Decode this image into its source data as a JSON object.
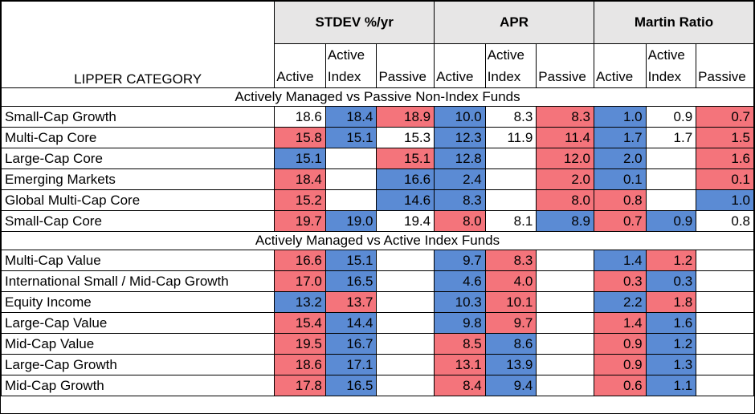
{
  "header": {
    "category_label": "LIPPER CATEGORY",
    "groups": [
      "STDEV %/yr",
      "APR",
      "Martin Ratio"
    ],
    "subheads": [
      "Active",
      "Active Index",
      "Passive"
    ]
  },
  "colors": {
    "high": "#f4747b",
    "low": "#5b8bd4",
    "header_bg": "#e7e6e6"
  },
  "sections": [
    {
      "title": "Actively Managed vs Passive Non-Index Funds",
      "rows": [
        {
          "name": "Small-Cap Growth",
          "cells": [
            {
              "v": "18.6",
              "c": "none"
            },
            {
              "v": "18.4",
              "c": "lo"
            },
            {
              "v": "18.9",
              "c": "hi"
            },
            {
              "v": "10.0",
              "c": "lo"
            },
            {
              "v": "8.3",
              "c": "none"
            },
            {
              "v": "8.3",
              "c": "hi"
            },
            {
              "v": "1.0",
              "c": "lo"
            },
            {
              "v": "0.9",
              "c": "none"
            },
            {
              "v": "0.7",
              "c": "hi"
            }
          ]
        },
        {
          "name": "Multi-Cap Core",
          "cells": [
            {
              "v": "15.8",
              "c": "hi"
            },
            {
              "v": "15.1",
              "c": "lo"
            },
            {
              "v": "15.3",
              "c": "none"
            },
            {
              "v": "12.3",
              "c": "lo"
            },
            {
              "v": "11.9",
              "c": "none"
            },
            {
              "v": "11.4",
              "c": "hi"
            },
            {
              "v": "1.7",
              "c": "lo"
            },
            {
              "v": "1.7",
              "c": "none"
            },
            {
              "v": "1.5",
              "c": "hi"
            }
          ]
        },
        {
          "name": "Large-Cap Core",
          "cells": [
            {
              "v": "15.1",
              "c": "lo"
            },
            {
              "v": "",
              "c": "none"
            },
            {
              "v": "15.1",
              "c": "hi"
            },
            {
              "v": "12.8",
              "c": "lo"
            },
            {
              "v": "",
              "c": "none"
            },
            {
              "v": "12.0",
              "c": "hi"
            },
            {
              "v": "2.0",
              "c": "lo"
            },
            {
              "v": "",
              "c": "none"
            },
            {
              "v": "1.6",
              "c": "hi"
            }
          ]
        },
        {
          "name": "Emerging Markets",
          "cells": [
            {
              "v": "18.4",
              "c": "hi"
            },
            {
              "v": "",
              "c": "none"
            },
            {
              "v": "16.6",
              "c": "lo"
            },
            {
              "v": "2.4",
              "c": "lo"
            },
            {
              "v": "",
              "c": "none"
            },
            {
              "v": "2.0",
              "c": "hi"
            },
            {
              "v": "0.1",
              "c": "lo"
            },
            {
              "v": "",
              "c": "none"
            },
            {
              "v": "0.1",
              "c": "hi"
            }
          ]
        },
        {
          "name": "Global Multi-Cap Core",
          "cells": [
            {
              "v": "15.2",
              "c": "hi"
            },
            {
              "v": "",
              "c": "none"
            },
            {
              "v": "14.6",
              "c": "lo"
            },
            {
              "v": "8.3",
              "c": "lo"
            },
            {
              "v": "",
              "c": "none"
            },
            {
              "v": "8.0",
              "c": "hi"
            },
            {
              "v": "0.8",
              "c": "hi"
            },
            {
              "v": "",
              "c": "none"
            },
            {
              "v": "1.0",
              "c": "lo"
            }
          ]
        },
        {
          "name": "Small-Cap Core",
          "cells": [
            {
              "v": "19.7",
              "c": "hi"
            },
            {
              "v": "19.0",
              "c": "lo"
            },
            {
              "v": "19.4",
              "c": "none"
            },
            {
              "v": "8.0",
              "c": "hi"
            },
            {
              "v": "8.1",
              "c": "none"
            },
            {
              "v": "8.9",
              "c": "lo"
            },
            {
              "v": "0.7",
              "c": "hi"
            },
            {
              "v": "0.9",
              "c": "lo"
            },
            {
              "v": "0.8",
              "c": "none"
            }
          ]
        }
      ]
    },
    {
      "title": "Actively Managed vs Active Index Funds",
      "rows": [
        {
          "name": "Multi-Cap Value",
          "cells": [
            {
              "v": "16.6",
              "c": "hi"
            },
            {
              "v": "15.1",
              "c": "lo"
            },
            {
              "v": "",
              "c": "none"
            },
            {
              "v": "9.7",
              "c": "lo"
            },
            {
              "v": "8.3",
              "c": "hi"
            },
            {
              "v": "",
              "c": "none"
            },
            {
              "v": "1.4",
              "c": "lo"
            },
            {
              "v": "1.2",
              "c": "hi"
            },
            {
              "v": "",
              "c": "none"
            }
          ]
        },
        {
          "name": "International Small / Mid-Cap Growth",
          "cells": [
            {
              "v": "17.0",
              "c": "hi"
            },
            {
              "v": "16.5",
              "c": "lo"
            },
            {
              "v": "",
              "c": "none"
            },
            {
              "v": "4.6",
              "c": "lo"
            },
            {
              "v": "4.0",
              "c": "hi"
            },
            {
              "v": "",
              "c": "none"
            },
            {
              "v": "0.3",
              "c": "hi"
            },
            {
              "v": "0.3",
              "c": "lo"
            },
            {
              "v": "",
              "c": "none"
            }
          ]
        },
        {
          "name": "Equity Income",
          "cells": [
            {
              "v": "13.2",
              "c": "lo"
            },
            {
              "v": "13.7",
              "c": "hi"
            },
            {
              "v": "",
              "c": "none"
            },
            {
              "v": "10.3",
              "c": "lo"
            },
            {
              "v": "10.1",
              "c": "hi"
            },
            {
              "v": "",
              "c": "none"
            },
            {
              "v": "2.2",
              "c": "lo"
            },
            {
              "v": "1.8",
              "c": "hi"
            },
            {
              "v": "",
              "c": "none"
            }
          ]
        },
        {
          "name": "Large-Cap Value",
          "cells": [
            {
              "v": "15.4",
              "c": "hi"
            },
            {
              "v": "14.4",
              "c": "lo"
            },
            {
              "v": "",
              "c": "none"
            },
            {
              "v": "9.8",
              "c": "lo"
            },
            {
              "v": "9.7",
              "c": "hi"
            },
            {
              "v": "",
              "c": "none"
            },
            {
              "v": "1.4",
              "c": "hi"
            },
            {
              "v": "1.6",
              "c": "lo"
            },
            {
              "v": "",
              "c": "none"
            }
          ]
        },
        {
          "name": "Mid-Cap Value",
          "cells": [
            {
              "v": "19.5",
              "c": "hi"
            },
            {
              "v": "16.7",
              "c": "lo"
            },
            {
              "v": "",
              "c": "none"
            },
            {
              "v": "8.5",
              "c": "hi"
            },
            {
              "v": "8.6",
              "c": "lo"
            },
            {
              "v": "",
              "c": "none"
            },
            {
              "v": "0.9",
              "c": "hi"
            },
            {
              "v": "1.2",
              "c": "lo"
            },
            {
              "v": "",
              "c": "none"
            }
          ]
        },
        {
          "name": "Large-Cap Growth",
          "cells": [
            {
              "v": "18.6",
              "c": "hi"
            },
            {
              "v": "17.1",
              "c": "lo"
            },
            {
              "v": "",
              "c": "none"
            },
            {
              "v": "13.1",
              "c": "hi"
            },
            {
              "v": "13.9",
              "c": "lo"
            },
            {
              "v": "",
              "c": "none"
            },
            {
              "v": "0.9",
              "c": "hi"
            },
            {
              "v": "1.3",
              "c": "lo"
            },
            {
              "v": "",
              "c": "none"
            }
          ]
        },
        {
          "name": "Mid-Cap Growth",
          "cells": [
            {
              "v": "17.8",
              "c": "hi"
            },
            {
              "v": "16.5",
              "c": "lo"
            },
            {
              "v": "",
              "c": "none"
            },
            {
              "v": "8.4",
              "c": "hi"
            },
            {
              "v": "9.4",
              "c": "lo"
            },
            {
              "v": "",
              "c": "none"
            },
            {
              "v": "0.6",
              "c": "hi"
            },
            {
              "v": "1.1",
              "c": "lo"
            },
            {
              "v": "",
              "c": "none"
            }
          ]
        }
      ]
    }
  ]
}
